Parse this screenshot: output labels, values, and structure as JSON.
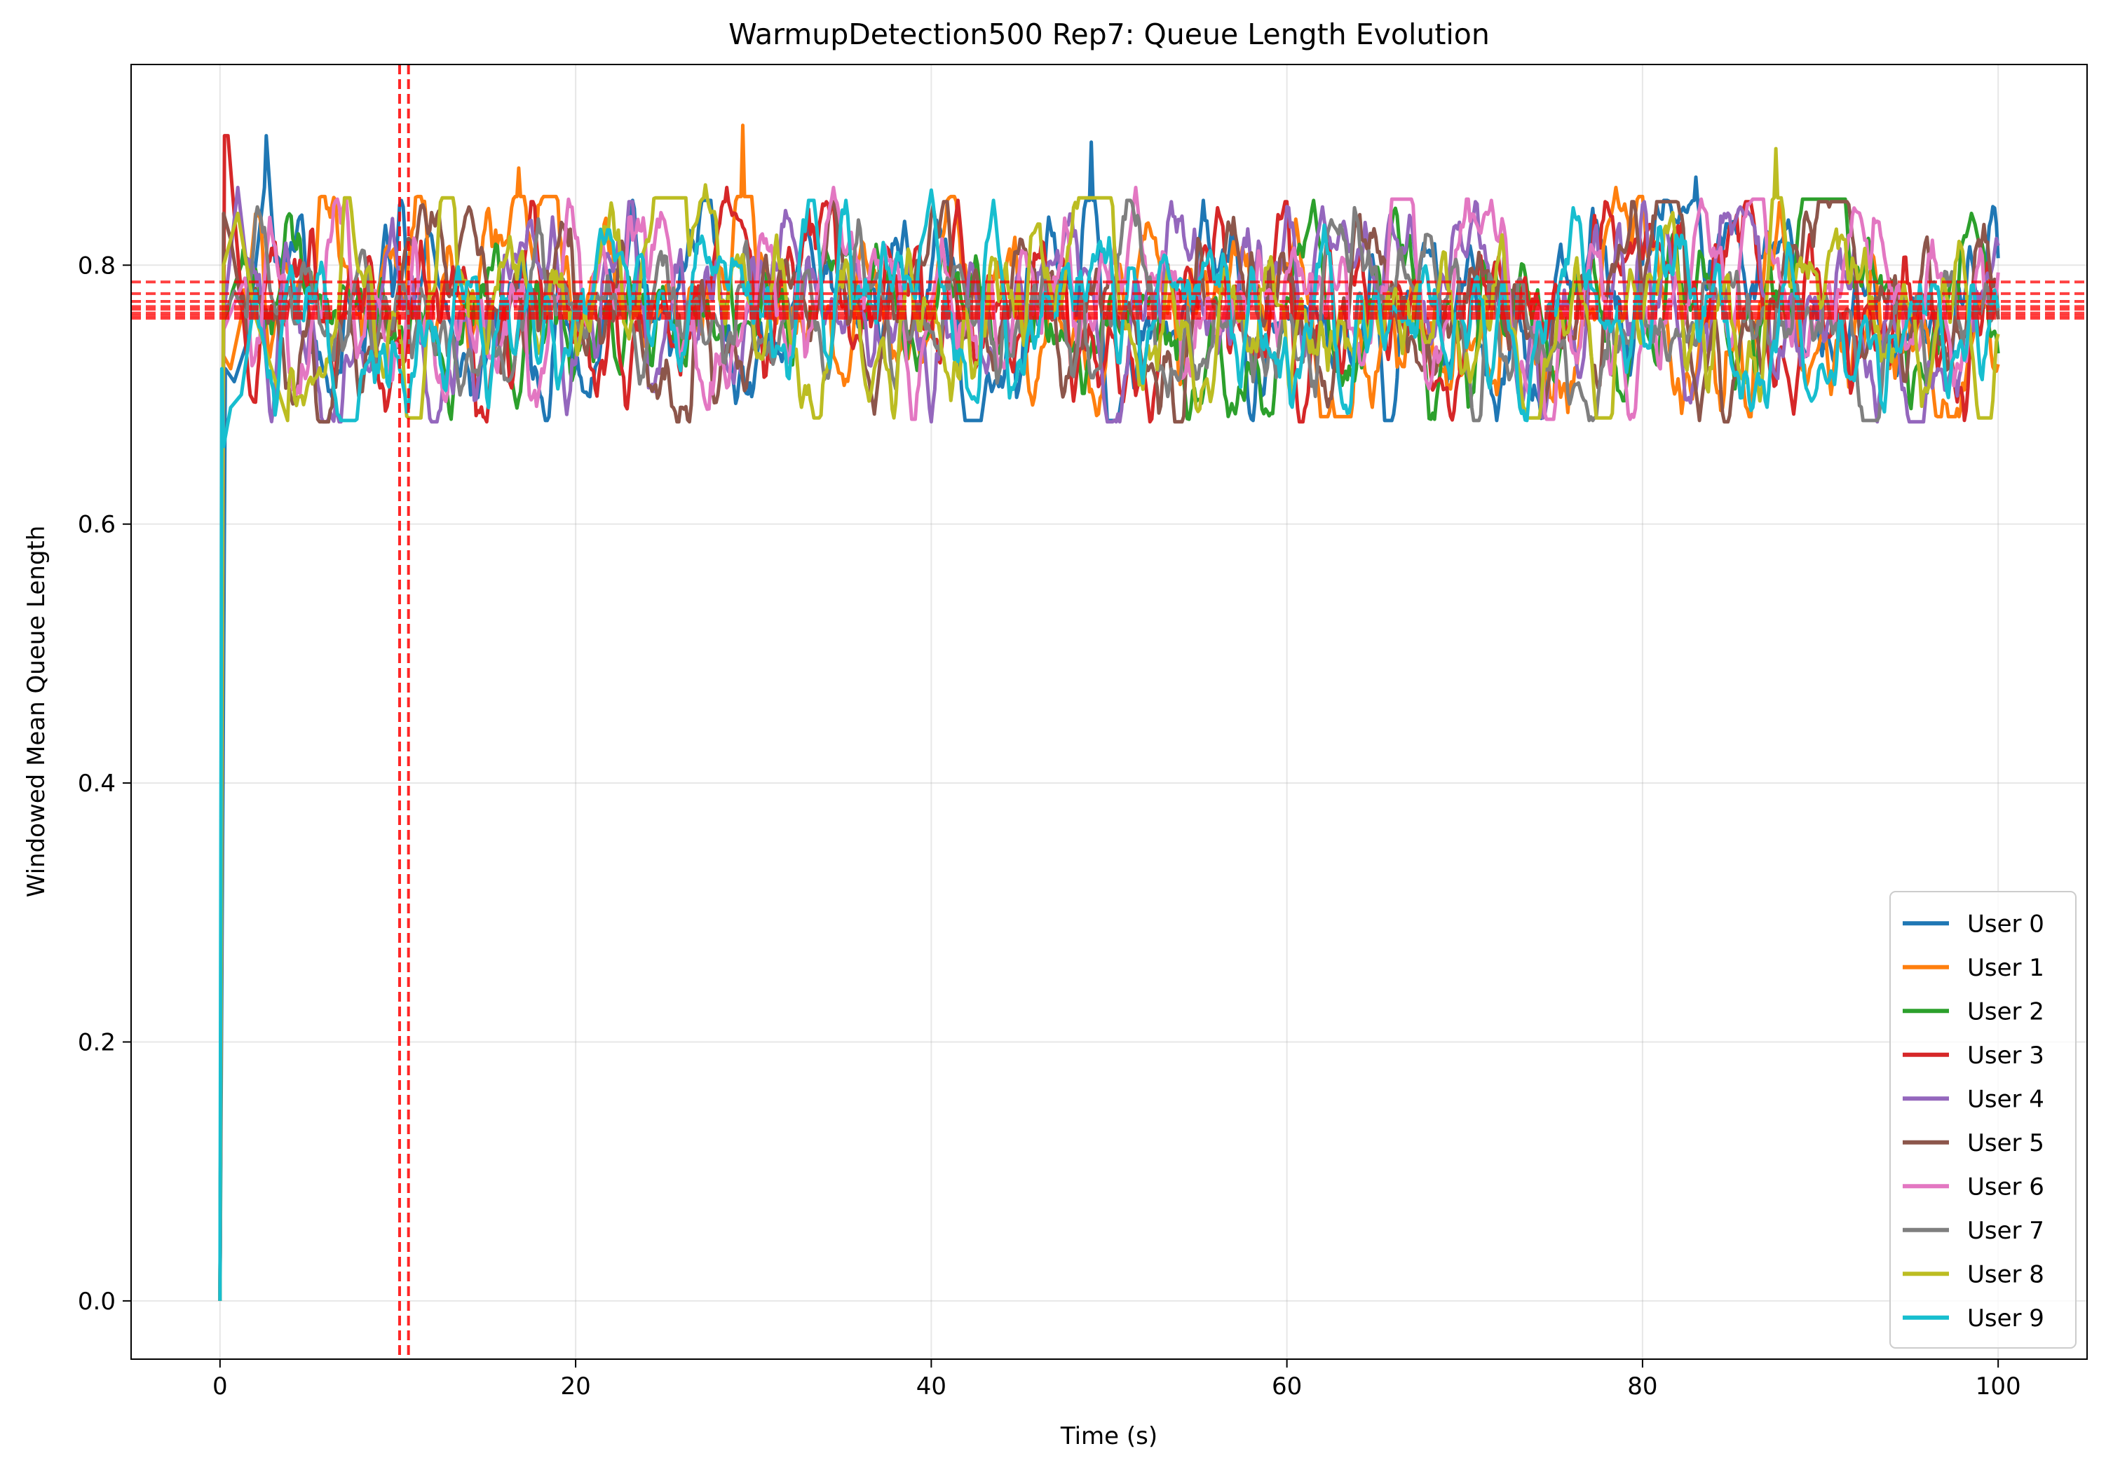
{
  "chart_data": {
    "type": "line",
    "title": "WarmupDetection500 Rep7: Queue Length Evolution",
    "xlabel": "Time (s)",
    "ylabel": "Windowed Mean Queue Length",
    "xlim": [
      -5,
      105
    ],
    "ylim": [
      -0.045,
      0.955
    ],
    "xticks": [
      0,
      20,
      40,
      60,
      80,
      100
    ],
    "xtick_labels": [
      "0",
      "20",
      "40",
      "60",
      "80",
      "100"
    ],
    "yticks": [
      0.0,
      0.2,
      0.4,
      0.6,
      0.8
    ],
    "ytick_labels": [
      "0.0",
      "0.2",
      "0.4",
      "0.6",
      "0.8"
    ],
    "grid": true,
    "legend_position": "lower-right",
    "steady_state_reference_lines": [
      0.787,
      0.778,
      0.772,
      0.768,
      0.766,
      0.763,
      0.761,
      0.759
    ],
    "warmup_cutoff_lines": [
      10.1,
      10.6
    ],
    "series": [
      {
        "name": "User 0",
        "color": "#1f77b4",
        "start": [
          [
            0,
            0
          ],
          [
            0.3,
            0.72
          ],
          [
            0.8,
            0.71
          ],
          [
            1.5,
            0.74
          ],
          [
            2.5,
            0.86
          ],
          [
            2.6,
            0.9
          ],
          [
            3.0,
            0.82
          ]
        ],
        "mean": 0.765,
        "amp": 0.045,
        "seed": 11,
        "peaks": [
          [
            49,
            0.895
          ],
          [
            83,
            0.868
          ],
          [
            33,
            0.83
          ]
        ]
      },
      {
        "name": "User 1",
        "color": "#ff7f0e",
        "start": [
          [
            0,
            0
          ],
          [
            0.2,
            0.73
          ],
          [
            0.6,
            0.72
          ],
          [
            1.2,
            0.76
          ]
        ],
        "mean": 0.768,
        "amp": 0.045,
        "seed": 23,
        "peaks": [
          [
            29.4,
            0.908
          ],
          [
            16.8,
            0.875
          ],
          [
            78.5,
            0.86
          ]
        ]
      },
      {
        "name": "User 2",
        "color": "#2ca02c",
        "start": [
          [
            0,
            0
          ],
          [
            0.2,
            0.75
          ],
          [
            0.7,
            0.78
          ],
          [
            1.2,
            0.8
          ]
        ],
        "mean": 0.766,
        "amp": 0.04,
        "seed": 37,
        "peaks": [
          [
            61.5,
            0.85
          ],
          [
            98.5,
            0.84
          ]
        ]
      },
      {
        "name": "User 3",
        "color": "#d62728",
        "start": [
          [
            0,
            0
          ],
          [
            0.25,
            0.9
          ],
          [
            0.45,
            0.9
          ],
          [
            0.8,
            0.84
          ],
          [
            1.5,
            0.73
          ]
        ],
        "mean": 0.764,
        "amp": 0.045,
        "seed": 41,
        "peaks": [
          [
            28.5,
            0.86
          ],
          [
            41.5,
            0.85
          ],
          [
            88.5,
            0.685
          ]
        ]
      },
      {
        "name": "User 4",
        "color": "#9467bd",
        "start": [
          [
            0,
            0
          ],
          [
            0.2,
            0.76
          ],
          [
            1.0,
            0.86
          ],
          [
            1.5,
            0.8
          ]
        ],
        "mean": 0.764,
        "amp": 0.045,
        "seed": 53,
        "peaks": [
          [
            73.2,
            0.69
          ],
          [
            62,
            0.845
          ],
          [
            85.5,
            0.845
          ]
        ]
      },
      {
        "name": "User 5",
        "color": "#8c564b",
        "start": [
          [
            0,
            0
          ],
          [
            0.2,
            0.84
          ],
          [
            0.6,
            0.82
          ],
          [
            1.2,
            0.77
          ]
        ],
        "mean": 0.764,
        "amp": 0.045,
        "seed": 67,
        "peaks": [
          [
            83.2,
            0.68
          ],
          [
            36.8,
            0.685
          ],
          [
            90.5,
            0.845
          ],
          [
            14,
            0.845
          ]
        ]
      },
      {
        "name": "User 6",
        "color": "#e377c2",
        "start": [
          [
            0,
            0
          ],
          [
            0.2,
            0.75
          ],
          [
            0.8,
            0.77
          ],
          [
            1.4,
            0.79
          ]
        ],
        "mean": 0.766,
        "amp": 0.045,
        "seed": 71,
        "peaks": [
          [
            34.5,
            0.86
          ],
          [
            51.5,
            0.86
          ],
          [
            71.5,
            0.85
          ]
        ]
      },
      {
        "name": "User 7",
        "color": "#7f7f7f",
        "start": [
          [
            0,
            0
          ],
          [
            0.2,
            0.76
          ],
          [
            0.8,
            0.78
          ],
          [
            1.5,
            0.76
          ]
        ],
        "mean": 0.765,
        "amp": 0.04,
        "seed": 83,
        "peaks": [
          [
            62.5,
            0.835
          ]
        ]
      },
      {
        "name": "User 8",
        "color": "#bcbd22",
        "start": [
          [
            0,
            0
          ],
          [
            0.2,
            0.8
          ],
          [
            1.0,
            0.84
          ],
          [
            2.0,
            0.76
          ],
          [
            3.8,
            0.68
          ]
        ],
        "mean": 0.767,
        "amp": 0.045,
        "seed": 97,
        "peaks": [
          [
            87.5,
            0.89
          ],
          [
            27.3,
            0.862
          ],
          [
            36.5,
            0.695
          ]
        ]
      },
      {
        "name": "User 9",
        "color": "#17becf",
        "start": [
          [
            0,
            0
          ],
          [
            0.1,
            0.72
          ],
          [
            0.2,
            0.66
          ],
          [
            0.6,
            0.69
          ],
          [
            1.2,
            0.7
          ],
          [
            2.0,
            0.78
          ]
        ],
        "mean": 0.765,
        "amp": 0.04,
        "seed": 101,
        "peaks": [
          [
            40,
            0.858
          ],
          [
            89.5,
            0.695
          ],
          [
            43.5,
            0.85
          ]
        ]
      }
    ]
  }
}
